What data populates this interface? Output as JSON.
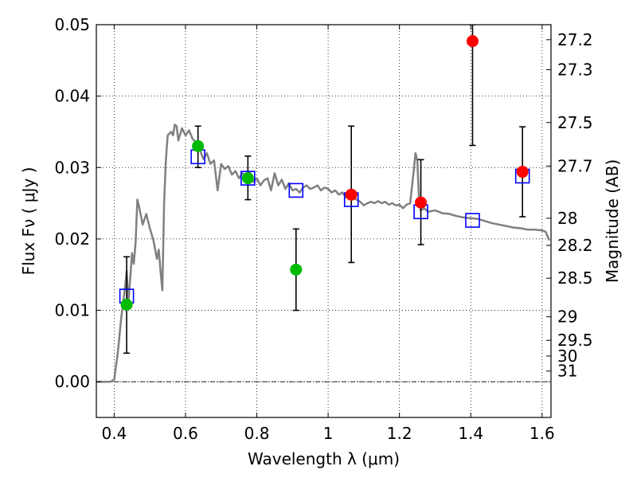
{
  "chart_data": {
    "type": "scatter",
    "title": "",
    "xlabel": "Wavelength  λ (μm)",
    "ylabel": "Flux  Fν  ( μJy )",
    "y2label": "Magnitude (AB)",
    "xlim": [
      0.35,
      1.625
    ],
    "ylim": [
      -0.005,
      0.05
    ],
    "grid": true,
    "x_ticks": [
      0.4,
      0.6,
      0.8,
      1.0,
      1.2,
      1.4,
      1.6
    ],
    "x_tick_labels": [
      "0.4",
      "0.6",
      "0.8",
      "1",
      "1.2",
      "1.4",
      "1.6"
    ],
    "y_ticks": [
      0.0,
      0.01,
      0.02,
      0.03,
      0.04,
      0.05
    ],
    "y_tick_labels": [
      "0.00",
      "0.01",
      "0.02",
      "0.03",
      "0.04",
      "0.05"
    ],
    "mag_ticks": [
      {
        "label": "27.2",
        "flux": 0.0479
      },
      {
        "label": "27.3",
        "flux": 0.0437
      },
      {
        "label": "27.5",
        "flux": 0.0363
      },
      {
        "label": "27.7",
        "flux": 0.0302
      },
      {
        "label": "28",
        "flux": 0.0229
      },
      {
        "label": "28.2",
        "flux": 0.0191
      },
      {
        "label": "28.5",
        "flux": 0.0145
      },
      {
        "label": "29",
        "flux": 0.0091
      },
      {
        "label": "29.5",
        "flux": 0.0058
      },
      {
        "label": "30",
        "flux": 0.0036
      },
      {
        "label": "31",
        "flux": 0.0015
      }
    ],
    "colors": {
      "sed": "#808080",
      "model": "#0000ff",
      "green": "#00bb00",
      "red": "#ff0000",
      "errorbar": "#000000"
    },
    "series": [
      {
        "kind": "line",
        "points": [
          [
            0.35,
            0.0
          ],
          [
            0.39,
            0.0
          ],
          [
            0.4,
            0.0003
          ],
          [
            0.41,
            0.004
          ],
          [
            0.42,
            0.009
          ],
          [
            0.43,
            0.013
          ],
          [
            0.435,
            0.0155
          ],
          [
            0.44,
            0.011
          ],
          [
            0.45,
            0.018
          ],
          [
            0.455,
            0.0165
          ],
          [
            0.46,
            0.0195
          ],
          [
            0.465,
            0.0255
          ],
          [
            0.47,
            0.0245
          ],
          [
            0.48,
            0.022
          ],
          [
            0.49,
            0.0235
          ],
          [
            0.5,
            0.0215
          ],
          [
            0.51,
            0.0198
          ],
          [
            0.52,
            0.0172
          ],
          [
            0.525,
            0.0185
          ],
          [
            0.53,
            0.0155
          ],
          [
            0.535,
            0.0128
          ],
          [
            0.54,
            0.025
          ],
          [
            0.545,
            0.031
          ],
          [
            0.55,
            0.0345
          ],
          [
            0.56,
            0.035
          ],
          [
            0.565,
            0.0345
          ],
          [
            0.57,
            0.036
          ],
          [
            0.575,
            0.0358
          ],
          [
            0.58,
            0.0338
          ],
          [
            0.59,
            0.0355
          ],
          [
            0.6,
            0.0345
          ],
          [
            0.61,
            0.0352
          ],
          [
            0.62,
            0.034
          ],
          [
            0.63,
            0.0335
          ],
          [
            0.64,
            0.0325
          ],
          [
            0.65,
            0.0312
          ],
          [
            0.66,
            0.032
          ],
          [
            0.67,
            0.0305
          ],
          [
            0.68,
            0.031
          ],
          [
            0.69,
            0.0268
          ],
          [
            0.7,
            0.0305
          ],
          [
            0.71,
            0.0298
          ],
          [
            0.72,
            0.0302
          ],
          [
            0.73,
            0.029
          ],
          [
            0.74,
            0.0295
          ],
          [
            0.75,
            0.0285
          ],
          [
            0.76,
            0.0292
          ],
          [
            0.77,
            0.0288
          ],
          [
            0.78,
            0.0294
          ],
          [
            0.79,
            0.028
          ],
          [
            0.8,
            0.0285
          ],
          [
            0.81,
            0.0275
          ],
          [
            0.82,
            0.0282
          ],
          [
            0.83,
            0.0285
          ],
          [
            0.84,
            0.0268
          ],
          [
            0.85,
            0.0292
          ],
          [
            0.86,
            0.0275
          ],
          [
            0.87,
            0.0283
          ],
          [
            0.88,
            0.027
          ],
          [
            0.89,
            0.0278
          ],
          [
            0.9,
            0.0268
          ],
          [
            0.91,
            0.027
          ],
          [
            0.92,
            0.0265
          ],
          [
            0.93,
            0.0272
          ],
          [
            0.94,
            0.0275
          ],
          [
            0.95,
            0.027
          ],
          [
            0.96,
            0.0272
          ],
          [
            0.97,
            0.0275
          ],
          [
            0.98,
            0.0268
          ],
          [
            0.99,
            0.0272
          ],
          [
            1.0,
            0.027
          ],
          [
            1.01,
            0.0265
          ],
          [
            1.02,
            0.0268
          ],
          [
            1.03,
            0.0262
          ],
          [
            1.04,
            0.0265
          ],
          [
            1.05,
            0.0258
          ],
          [
            1.06,
            0.026
          ],
          [
            1.07,
            0.0258
          ],
          [
            1.08,
            0.0255
          ],
          [
            1.09,
            0.0252
          ],
          [
            1.1,
            0.0247
          ],
          [
            1.11,
            0.025
          ],
          [
            1.12,
            0.0252
          ],
          [
            1.13,
            0.025
          ],
          [
            1.14,
            0.0253
          ],
          [
            1.15,
            0.025
          ],
          [
            1.16,
            0.0252
          ],
          [
            1.17,
            0.0248
          ],
          [
            1.18,
            0.025
          ],
          [
            1.19,
            0.0247
          ],
          [
            1.2,
            0.0248
          ],
          [
            1.21,
            0.0243
          ],
          [
            1.22,
            0.0248
          ],
          [
            1.23,
            0.025
          ],
          [
            1.24,
            0.0295
          ],
          [
            1.245,
            0.032
          ],
          [
            1.25,
            0.031
          ],
          [
            1.255,
            0.0255
          ],
          [
            1.26,
            0.024
          ],
          [
            1.27,
            0.0243
          ],
          [
            1.28,
            0.0238
          ],
          [
            1.3,
            0.024
          ],
          [
            1.32,
            0.0236
          ],
          [
            1.34,
            0.0235
          ],
          [
            1.36,
            0.0232
          ],
          [
            1.38,
            0.023
          ],
          [
            1.4,
            0.0229
          ],
          [
            1.42,
            0.0228
          ],
          [
            1.44,
            0.0225
          ],
          [
            1.46,
            0.0222
          ],
          [
            1.48,
            0.022
          ],
          [
            1.5,
            0.0218
          ],
          [
            1.52,
            0.0216
          ],
          [
            1.54,
            0.0215
          ],
          [
            1.56,
            0.0213
          ],
          [
            1.58,
            0.0213
          ],
          [
            1.6,
            0.0212
          ],
          [
            1.61,
            0.021
          ],
          [
            1.62,
            0.0198
          ]
        ]
      },
      {
        "kind": "open-square",
        "points": [
          [
            0.435,
            0.012
          ],
          [
            0.635,
            0.0315
          ],
          [
            0.775,
            0.0285
          ],
          [
            0.91,
            0.0268
          ],
          [
            1.065,
            0.0255
          ],
          [
            1.26,
            0.0238
          ],
          [
            1.405,
            0.0226
          ],
          [
            1.545,
            0.0288
          ]
        ]
      },
      {
        "kind": "filled-circle",
        "color": "green",
        "points": [
          {
            "x": 0.435,
            "y": 0.0108,
            "ylo": 0.004,
            "yhi": 0.0175
          },
          {
            "x": 0.635,
            "y": 0.033,
            "ylo": 0.03,
            "yhi": 0.0358
          },
          {
            "x": 0.775,
            "y": 0.0285,
            "ylo": 0.0255,
            "yhi": 0.0316
          },
          {
            "x": 0.91,
            "y": 0.0157,
            "ylo": 0.01,
            "yhi": 0.0214
          }
        ]
      },
      {
        "kind": "filled-circle",
        "color": "red",
        "points": [
          {
            "x": 1.065,
            "y": 0.0262,
            "ylo": 0.0167,
            "yhi": 0.0358
          },
          {
            "x": 1.26,
            "y": 0.0251,
            "ylo": 0.0192,
            "yhi": 0.0311
          },
          {
            "x": 1.405,
            "y": 0.0477,
            "ylo": 0.0331,
            "yhi": 0.05
          },
          {
            "x": 1.545,
            "y": 0.0294,
            "ylo": 0.0231,
            "yhi": 0.0357
          }
        ]
      }
    ]
  }
}
